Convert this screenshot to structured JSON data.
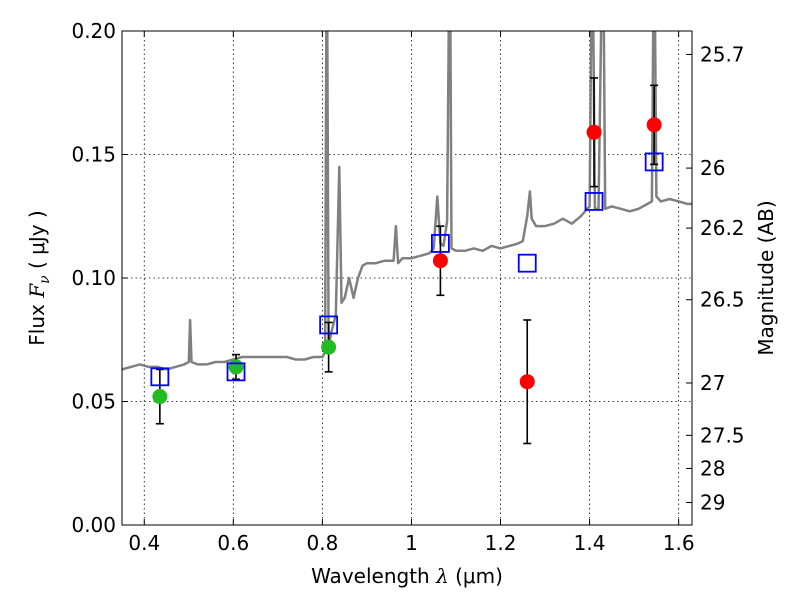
{
  "chart_data": {
    "type": "scatter",
    "xlabel": "Wavelength  λ (μm)",
    "ylabel": "Flux  F_ν  ( μJy )",
    "ylabel_parts": {
      "prefix": "Flux  ",
      "symbol": "F",
      "subscript": "ν",
      "suffix": "  ( μJy )"
    },
    "xlabel_parts": {
      "prefix": "Wavelength  ",
      "symbol": "λ",
      "suffix": " (μm)"
    },
    "y2label": "Magnitude (AB)",
    "xlim": [
      0.35,
      1.63
    ],
    "ylim": [
      0.0,
      0.2
    ],
    "grid": true,
    "x_ticks": [
      0.4,
      0.6,
      0.8,
      1.0,
      1.2,
      1.4,
      1.6
    ],
    "x_tick_labels": [
      "0.4",
      "0.6",
      "0.8",
      "1",
      "1.2",
      "1.4",
      "1.6"
    ],
    "y_ticks": [
      0.0,
      0.05,
      0.1,
      0.15,
      0.2
    ],
    "y_tick_labels": [
      "0.00",
      "0.05",
      "0.10",
      "0.15",
      "0.20"
    ],
    "y2_ticks": [
      {
        "label": "25.7",
        "flux": 0.1905
      },
      {
        "label": "26",
        "flux": 0.1445
      },
      {
        "label": "26.2",
        "flux": 0.1202
      },
      {
        "label": "26.5",
        "flux": 0.0912
      },
      {
        "label": "27",
        "flux": 0.0575
      },
      {
        "label": "27.5",
        "flux": 0.0363
      },
      {
        "label": "28",
        "flux": 0.0229
      },
      {
        "label": "29",
        "flux": 0.0091
      }
    ],
    "series": [
      {
        "marker": "circle",
        "color": "#22bb22",
        "points": [
          {
            "x": 0.435,
            "y": 0.052,
            "yerr": 0.011
          },
          {
            "x": 0.606,
            "y": 0.064,
            "yerr": 0.005
          },
          {
            "x": 0.814,
            "y": 0.072,
            "yerr": 0.01
          }
        ]
      },
      {
        "marker": "circle",
        "color": "#ff0000",
        "points": [
          {
            "x": 1.065,
            "y": 0.107,
            "yerr": 0.014
          },
          {
            "x": 1.26,
            "y": 0.058,
            "yerr": 0.025
          },
          {
            "x": 1.41,
            "y": 0.159,
            "yerr": 0.022
          },
          {
            "x": 1.545,
            "y": 0.162,
            "yerr": 0.016
          }
        ]
      },
      {
        "marker": "open-square",
        "color": "#0000ff",
        "points": [
          {
            "x": 0.435,
            "y": 0.06
          },
          {
            "x": 0.606,
            "y": 0.062
          },
          {
            "x": 0.814,
            "y": 0.081
          },
          {
            "x": 1.065,
            "y": 0.114
          },
          {
            "x": 1.26,
            "y": 0.106
          },
          {
            "x": 1.41,
            "y": 0.131
          },
          {
            "x": 1.545,
            "y": 0.147
          }
        ]
      }
    ],
    "spectrum": {
      "color": "#808080",
      "points": [
        [
          0.35,
          0.063
        ],
        [
          0.37,
          0.064
        ],
        [
          0.39,
          0.065
        ],
        [
          0.41,
          0.064
        ],
        [
          0.43,
          0.064
        ],
        [
          0.45,
          0.063
        ],
        [
          0.47,
          0.064
        ],
        [
          0.49,
          0.065
        ],
        [
          0.5,
          0.066
        ],
        [
          0.503,
          0.083
        ],
        [
          0.506,
          0.066
        ],
        [
          0.52,
          0.065
        ],
        [
          0.54,
          0.065
        ],
        [
          0.56,
          0.066
        ],
        [
          0.58,
          0.066
        ],
        [
          0.6,
          0.067
        ],
        [
          0.62,
          0.068
        ],
        [
          0.64,
          0.068
        ],
        [
          0.66,
          0.068
        ],
        [
          0.68,
          0.068
        ],
        [
          0.7,
          0.068
        ],
        [
          0.72,
          0.068
        ],
        [
          0.74,
          0.067
        ],
        [
          0.76,
          0.067
        ],
        [
          0.78,
          0.068
        ],
        [
          0.8,
          0.068
        ],
        [
          0.806,
          0.07
        ],
        [
          0.81,
          0.25
        ],
        [
          0.814,
          0.072
        ],
        [
          0.82,
          0.078
        ],
        [
          0.83,
          0.085
        ],
        [
          0.838,
          0.145
        ],
        [
          0.843,
          0.09
        ],
        [
          0.85,
          0.092
        ],
        [
          0.86,
          0.1
        ],
        [
          0.87,
          0.092
        ],
        [
          0.88,
          0.1
        ],
        [
          0.89,
          0.105
        ],
        [
          0.9,
          0.106
        ],
        [
          0.92,
          0.106
        ],
        [
          0.94,
          0.107
        ],
        [
          0.96,
          0.107
        ],
        [
          0.965,
          0.121
        ],
        [
          0.97,
          0.106
        ],
        [
          0.98,
          0.108
        ],
        [
          1.0,
          0.108
        ],
        [
          1.02,
          0.109
        ],
        [
          1.04,
          0.11
        ],
        [
          1.05,
          0.112
        ],
        [
          1.058,
          0.133
        ],
        [
          1.065,
          0.114
        ],
        [
          1.072,
          0.113
        ],
        [
          1.08,
          0.123
        ],
        [
          1.086,
          0.25
        ],
        [
          1.09,
          0.112
        ],
        [
          1.1,
          0.111
        ],
        [
          1.12,
          0.111
        ],
        [
          1.14,
          0.112
        ],
        [
          1.16,
          0.111
        ],
        [
          1.18,
          0.113
        ],
        [
          1.2,
          0.112
        ],
        [
          1.22,
          0.113
        ],
        [
          1.24,
          0.114
        ],
        [
          1.25,
          0.115
        ],
        [
          1.26,
          0.125
        ],
        [
          1.266,
          0.135
        ],
        [
          1.27,
          0.124
        ],
        [
          1.28,
          0.121
        ],
        [
          1.3,
          0.121
        ],
        [
          1.32,
          0.122
        ],
        [
          1.34,
          0.124
        ],
        [
          1.36,
          0.122
        ],
        [
          1.38,
          0.125
        ],
        [
          1.39,
          0.127
        ],
        [
          1.4,
          0.129
        ],
        [
          1.406,
          0.25
        ],
        [
          1.412,
          0.128
        ],
        [
          1.42,
          0.128
        ],
        [
          1.43,
          0.25
        ],
        [
          1.435,
          0.128
        ],
        [
          1.45,
          0.129
        ],
        [
          1.47,
          0.128
        ],
        [
          1.49,
          0.127
        ],
        [
          1.51,
          0.128
        ],
        [
          1.53,
          0.13
        ],
        [
          1.54,
          0.131
        ],
        [
          1.545,
          0.25
        ],
        [
          1.55,
          0.133
        ],
        [
          1.56,
          0.131
        ],
        [
          1.58,
          0.132
        ],
        [
          1.6,
          0.131
        ],
        [
          1.62,
          0.13
        ],
        [
          1.63,
          0.13
        ]
      ]
    }
  }
}
